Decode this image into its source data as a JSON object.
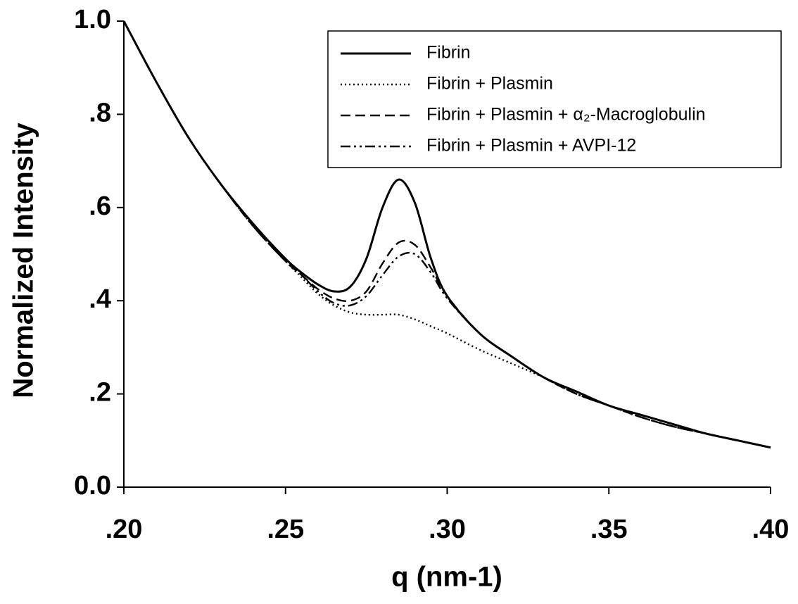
{
  "chart_data": {
    "type": "line",
    "x_label": "q (nm-1)",
    "y_label": "Normalized Intensity",
    "x": [
      0.2,
      0.21,
      0.22,
      0.23,
      0.24,
      0.25,
      0.255,
      0.26,
      0.265,
      0.27,
      0.275,
      0.28,
      0.285,
      0.29,
      0.295,
      0.3,
      0.31,
      0.32,
      0.33,
      0.34,
      0.35,
      0.36,
      0.37,
      0.38,
      0.39,
      0.4
    ],
    "series": [
      {
        "name": "Fibrin",
        "color": "#000000",
        "style": "solid",
        "values": [
          1.0,
          0.87,
          0.75,
          0.65,
          0.565,
          0.49,
          0.46,
          0.435,
          0.42,
          0.43,
          0.49,
          0.6,
          0.66,
          0.61,
          0.49,
          0.41,
          0.33,
          0.28,
          0.235,
          0.205,
          0.175,
          0.155,
          0.135,
          0.115,
          0.1,
          0.085
        ]
      },
      {
        "name": "Fibrin + Plasmin",
        "color": "#000000",
        "style": "dotted",
        "values": [
          1.0,
          0.87,
          0.75,
          0.65,
          0.56,
          0.485,
          0.45,
          0.415,
          0.39,
          0.375,
          0.37,
          0.37,
          0.37,
          0.36,
          0.345,
          0.33,
          0.295,
          0.265,
          0.235,
          0.2,
          0.175,
          0.15,
          0.13,
          0.115,
          0.1,
          0.085
        ]
      },
      {
        "name": "Fibrin + Plasmin + α₂-Macroglobulin",
        "color": "#000000",
        "style": "dashed",
        "values": [
          1.0,
          0.87,
          0.75,
          0.65,
          0.56,
          0.485,
          0.455,
          0.425,
          0.405,
          0.4,
          0.42,
          0.48,
          0.525,
          0.52,
          0.47,
          0.41,
          0.33,
          0.28,
          0.235,
          0.2,
          0.175,
          0.15,
          0.13,
          0.115,
          0.1,
          0.085
        ]
      },
      {
        "name": "Fibrin + Plasmin + AVPI-12",
        "color": "#000000",
        "style": "dashdot",
        "values": [
          1.0,
          0.87,
          0.75,
          0.65,
          0.56,
          0.485,
          0.455,
          0.42,
          0.395,
          0.39,
          0.41,
          0.455,
          0.495,
          0.5,
          0.46,
          0.405,
          0.33,
          0.28,
          0.235,
          0.2,
          0.175,
          0.15,
          0.13,
          0.115,
          0.1,
          0.085
        ]
      }
    ],
    "xlim": [
      0.2,
      0.4
    ],
    "xticks": [
      {
        "value": 0.2,
        "label": ".20"
      },
      {
        "value": 0.25,
        "label": ".25"
      },
      {
        "value": 0.3,
        "label": ".30"
      },
      {
        "value": 0.35,
        "label": ".35"
      },
      {
        "value": 0.4,
        "label": ".40"
      }
    ],
    "ylim": [
      0,
      1
    ],
    "yticks": [
      {
        "value": 0,
        "label": "0.0"
      },
      {
        "value": 0.2,
        "label": ".2"
      },
      {
        "value": 0.4,
        "label": ".4"
      },
      {
        "value": 0.6,
        "label": ".6"
      },
      {
        "value": 0.8,
        "label": ".8"
      },
      {
        "value": 1,
        "label": "1.0"
      }
    ],
    "grid": false,
    "legend": "upper-right"
  }
}
